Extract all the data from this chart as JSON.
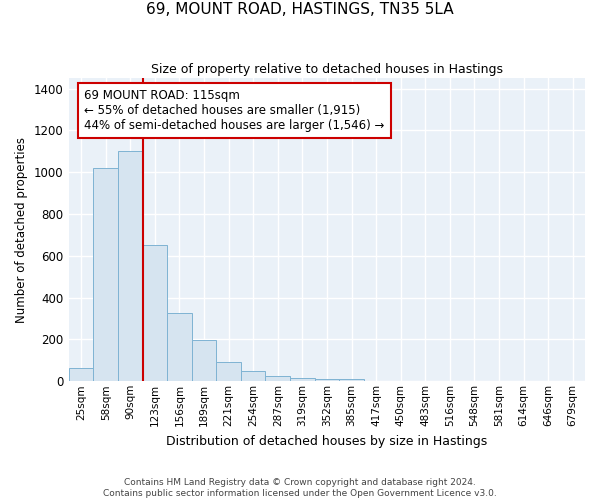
{
  "title": "69, MOUNT ROAD, HASTINGS, TN35 5LA",
  "subtitle": "Size of property relative to detached houses in Hastings",
  "xlabel": "Distribution of detached houses by size in Hastings",
  "ylabel": "Number of detached properties",
  "categories": [
    "25sqm",
    "58sqm",
    "90sqm",
    "123sqm",
    "156sqm",
    "189sqm",
    "221sqm",
    "254sqm",
    "287sqm",
    "319sqm",
    "352sqm",
    "385sqm",
    "417sqm",
    "450sqm",
    "483sqm",
    "516sqm",
    "548sqm",
    "581sqm",
    "614sqm",
    "646sqm",
    "679sqm"
  ],
  "values": [
    65,
    1020,
    1100,
    650,
    325,
    195,
    90,
    50,
    25,
    15,
    10,
    10,
    0,
    0,
    0,
    0,
    0,
    0,
    0,
    0,
    0
  ],
  "bar_color": "#d6e4f0",
  "bar_edge_color": "#7fb3d3",
  "figure_background": "#ffffff",
  "plot_background": "#eaf1f8",
  "grid_color": "#ffffff",
  "vline_x_index": 3,
  "vline_color": "#cc0000",
  "annotation_line1": "69 MOUNT ROAD: 115sqm",
  "annotation_line2": "← 55% of detached houses are smaller (1,915)",
  "annotation_line3": "44% of semi-detached houses are larger (1,546) →",
  "annotation_box_facecolor": "#ffffff",
  "annotation_box_edgecolor": "#cc0000",
  "ylim": [
    0,
    1450
  ],
  "yticks": [
    0,
    200,
    400,
    600,
    800,
    1000,
    1200,
    1400
  ],
  "footer_line1": "Contains HM Land Registry data © Crown copyright and database right 2024.",
  "footer_line2": "Contains public sector information licensed under the Open Government Licence v3.0."
}
